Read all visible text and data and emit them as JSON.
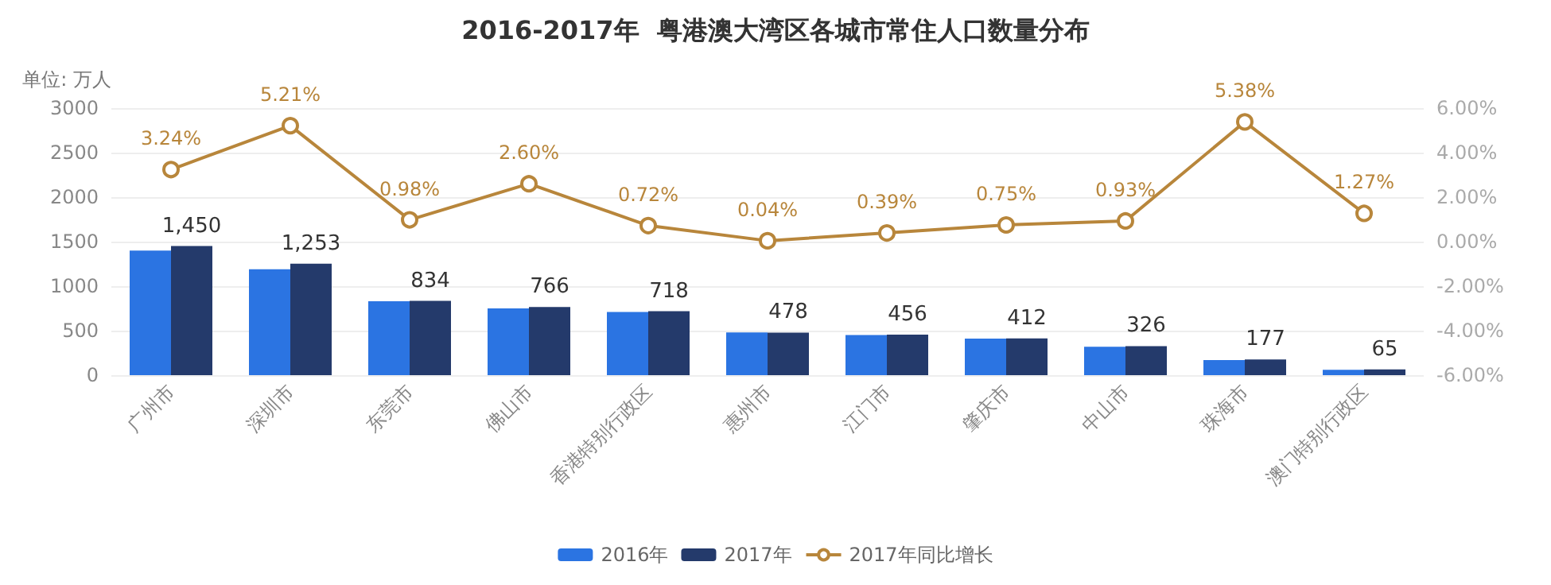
{
  "chart_data": {
    "type": "bar",
    "title": "2016-2017年  粤港澳大湾区各城市常住人口数量分布",
    "ylabel": "单位: 万人",
    "categories": [
      "广州市",
      "深圳市",
      "东莞市",
      "佛山市",
      "香港特别行政区",
      "惠州市",
      "江门市",
      "肇庆市",
      "中山市",
      "珠海市",
      "澳门特别行政区"
    ],
    "series": [
      {
        "name": "2016年",
        "color": "#2b74e2",
        "values": [
          1400,
          1190,
          830,
          750,
          710,
          480,
          450,
          410,
          320,
          170,
          60
        ]
      },
      {
        "name": "2017年",
        "color": "#243a6b",
        "values": [
          1450,
          1253,
          834,
          766,
          718,
          478,
          456,
          412,
          326,
          177,
          65
        ],
        "value_labels": [
          "1,450",
          "1,253",
          "834",
          "766",
          "718",
          "478",
          "456",
          "412",
          "326",
          "177",
          "65"
        ]
      },
      {
        "name": "2017年同比增长",
        "type": "line",
        "axis": "y2",
        "color": "#b8863b",
        "marker": "circle",
        "values": [
          3.24,
          5.21,
          0.98,
          2.6,
          0.72,
          0.04,
          0.39,
          0.75,
          0.93,
          5.38,
          1.27
        ],
        "value_labels": [
          "3.24%",
          "5.21%",
          "0.98%",
          "2.60%",
          "0.72%",
          "0.04%",
          "0.39%",
          "0.75%",
          "0.93%",
          "5.38%",
          "1.27%"
        ]
      }
    ],
    "ylim": [
      0,
      3000
    ],
    "yticks": [
      0,
      500,
      1000,
      1500,
      2000,
      2500,
      3000
    ],
    "y2lim": [
      -6,
      6
    ],
    "y2ticks": [
      {
        "value": -6,
        "label": "-6.00%"
      },
      {
        "value": -4,
        "label": "-4.00%"
      },
      {
        "value": -2,
        "label": "-2.00%"
      },
      {
        "value": 0,
        "label": "0.00%"
      },
      {
        "value": 2,
        "label": "2.00%"
      },
      {
        "value": 4,
        "label": "4.00%"
      },
      {
        "value": 6,
        "label": "6.00%"
      }
    ],
    "grid": "y",
    "legend": "bottom"
  }
}
